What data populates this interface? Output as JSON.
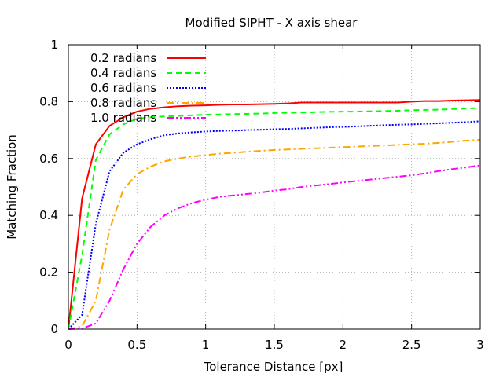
{
  "chart_data": {
    "type": "line",
    "title": "Modified SIPHT - X axis shear",
    "xlabel": "Tolerance Distance [px]",
    "ylabel": "Matching Fraction",
    "xlim": [
      0,
      3
    ],
    "ylim": [
      0,
      1
    ],
    "xticks": [
      0,
      0.5,
      1,
      1.5,
      2,
      2.5,
      3
    ],
    "xtick_labels": [
      "0",
      "0.5",
      "1",
      "1.5",
      "2",
      "2.5",
      "3"
    ],
    "yticks": [
      0,
      0.2,
      0.4,
      0.6,
      0.8,
      1
    ],
    "ytick_labels": [
      "0",
      "0.2",
      "0.4",
      "0.6",
      "0.8",
      "1"
    ],
    "grid": true,
    "legend": "top-left",
    "series": [
      {
        "name": "0.2 radians",
        "color": "#ff0000",
        "dash": "solid",
        "x": [
          0,
          0.1,
          0.2,
          0.3,
          0.4,
          0.5,
          0.6,
          0.7,
          0.8,
          0.9,
          1.0,
          1.1,
          1.2,
          1.3,
          1.4,
          1.5,
          1.6,
          1.7,
          1.8,
          1.9,
          2.0,
          2.1,
          2.2,
          2.3,
          2.4,
          2.5,
          2.6,
          2.7,
          2.8,
          2.9,
          3.0
        ],
        "y": [
          0,
          0.46,
          0.65,
          0.715,
          0.745,
          0.765,
          0.775,
          0.78,
          0.784,
          0.786,
          0.787,
          0.789,
          0.79,
          0.79,
          0.791,
          0.792,
          0.794,
          0.797,
          0.797,
          0.797,
          0.797,
          0.797,
          0.797,
          0.797,
          0.797,
          0.8,
          0.802,
          0.802,
          0.804,
          0.805,
          0.806
        ]
      },
      {
        "name": "0.4 radians",
        "color": "#00ff00",
        "dash": "dashed",
        "x": [
          0,
          0.1,
          0.2,
          0.3,
          0.4,
          0.5,
          0.6,
          0.7,
          0.8,
          0.9,
          1.0,
          1.1,
          1.2,
          1.3,
          1.4,
          1.5,
          1.6,
          1.7,
          1.8,
          1.9,
          2.0,
          2.1,
          2.2,
          2.3,
          2.4,
          2.5,
          2.6,
          2.7,
          2.8,
          2.9,
          3.0
        ],
        "y": [
          0,
          0.26,
          0.595,
          0.685,
          0.72,
          0.74,
          0.745,
          0.748,
          0.75,
          0.752,
          0.754,
          0.755,
          0.756,
          0.757,
          0.758,
          0.76,
          0.761,
          0.762,
          0.763,
          0.764,
          0.765,
          0.765,
          0.766,
          0.767,
          0.768,
          0.77,
          0.771,
          0.772,
          0.774,
          0.776,
          0.778
        ]
      },
      {
        "name": "0.6 radians",
        "color": "#0000ff",
        "dash": "dotted",
        "x": [
          0,
          0.1,
          0.2,
          0.3,
          0.4,
          0.5,
          0.6,
          0.7,
          0.8,
          0.9,
          1.0,
          1.1,
          1.2,
          1.3,
          1.4,
          1.5,
          1.6,
          1.7,
          1.8,
          1.9,
          2.0,
          2.1,
          2.2,
          2.3,
          2.4,
          2.5,
          2.6,
          2.7,
          2.8,
          2.9,
          3.0
        ],
        "y": [
          0,
          0.05,
          0.37,
          0.555,
          0.62,
          0.65,
          0.668,
          0.682,
          0.688,
          0.692,
          0.695,
          0.697,
          0.698,
          0.7,
          0.701,
          0.703,
          0.704,
          0.706,
          0.708,
          0.71,
          0.711,
          0.713,
          0.715,
          0.717,
          0.719,
          0.72,
          0.722,
          0.724,
          0.726,
          0.728,
          0.731
        ]
      },
      {
        "name": "0.8 radians",
        "color": "#ffa500",
        "dash": "dashdot",
        "x": [
          0,
          0.1,
          0.2,
          0.3,
          0.4,
          0.5,
          0.6,
          0.7,
          0.8,
          0.9,
          1.0,
          1.1,
          1.2,
          1.3,
          1.4,
          1.5,
          1.6,
          1.7,
          1.8,
          1.9,
          2.0,
          2.1,
          2.2,
          2.3,
          2.4,
          2.5,
          2.6,
          2.7,
          2.8,
          2.9,
          3.0
        ],
        "y": [
          0,
          0.01,
          0.1,
          0.35,
          0.49,
          0.545,
          0.572,
          0.59,
          0.6,
          0.607,
          0.612,
          0.617,
          0.62,
          0.624,
          0.627,
          0.63,
          0.632,
          0.634,
          0.636,
          0.638,
          0.64,
          0.642,
          0.644,
          0.646,
          0.648,
          0.65,
          0.652,
          0.655,
          0.659,
          0.663,
          0.666
        ]
      },
      {
        "name": "1.0 radians",
        "color": "#ff00ff",
        "dash": "dashdotdot",
        "x": [
          0,
          0.1,
          0.2,
          0.3,
          0.4,
          0.5,
          0.6,
          0.7,
          0.8,
          0.9,
          1.0,
          1.1,
          1.2,
          1.3,
          1.4,
          1.5,
          1.6,
          1.7,
          1.8,
          1.9,
          2.0,
          2.1,
          2.2,
          2.3,
          2.4,
          2.5,
          2.6,
          2.7,
          2.8,
          2.9,
          3.0
        ],
        "y": [
          0,
          0.002,
          0.02,
          0.1,
          0.21,
          0.3,
          0.36,
          0.4,
          0.425,
          0.443,
          0.455,
          0.465,
          0.47,
          0.475,
          0.48,
          0.487,
          0.492,
          0.5,
          0.505,
          0.51,
          0.516,
          0.521,
          0.526,
          0.531,
          0.536,
          0.541,
          0.548,
          0.556,
          0.563,
          0.569,
          0.576
        ]
      }
    ]
  }
}
